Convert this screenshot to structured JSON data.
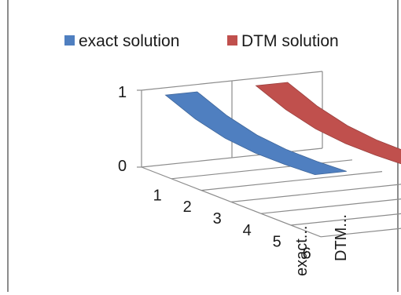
{
  "chart_data": {
    "type": "line",
    "subtype": "3d-line",
    "title": "",
    "xlabel": "",
    "ylabel": "",
    "ylim": [
      0,
      1
    ],
    "y_ticks": [
      "0",
      "1"
    ],
    "categories": [
      "1",
      "2",
      "3",
      "4",
      "5",
      "6"
    ],
    "depth_labels": [
      "exact...",
      "DTM..."
    ],
    "legend_position": "top",
    "gridlines": true,
    "series": [
      {
        "name": "exact solution",
        "color": "#4f7fc0",
        "values": [
          1.0,
          0.84,
          0.74,
          0.7,
          0.7,
          0.72
        ]
      },
      {
        "name": "DTM solution",
        "color": "#c0504d",
        "values": [
          1.0,
          0.84,
          0.74,
          0.7,
          0.7,
          0.72
        ]
      }
    ]
  }
}
